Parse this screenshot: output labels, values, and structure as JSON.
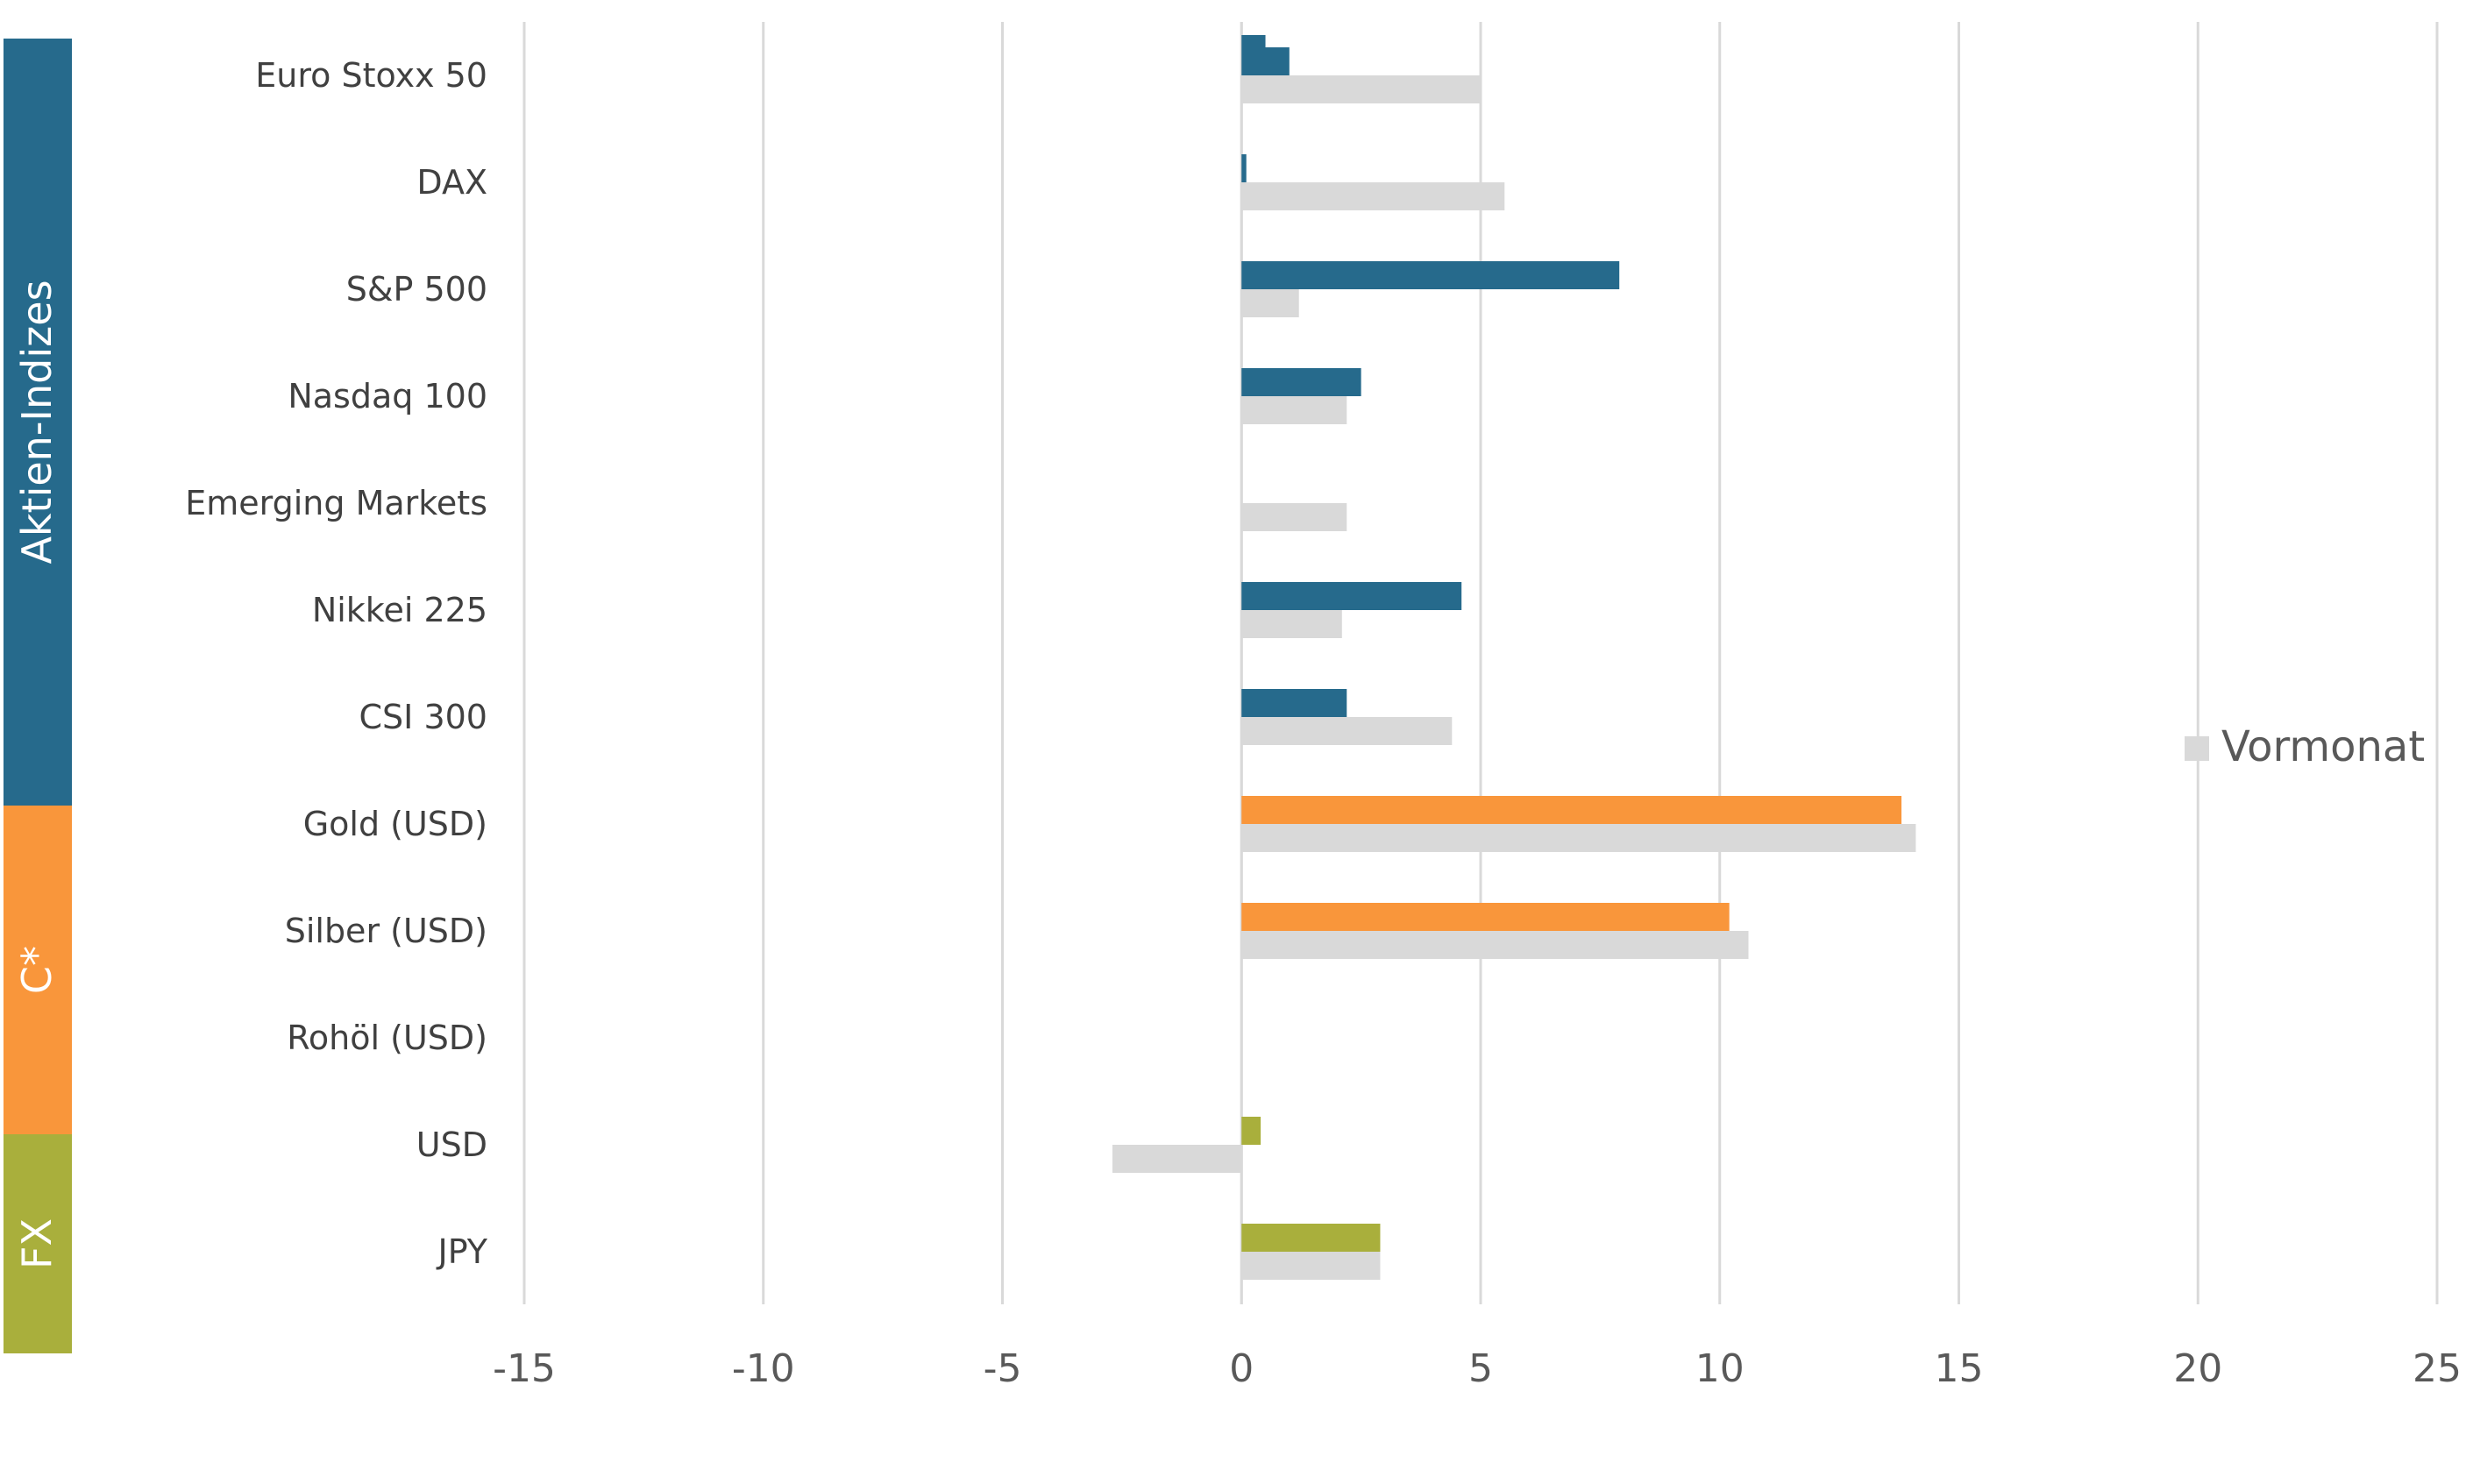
{
  "chart_data": {
    "type": "bar",
    "orientation": "horizontal",
    "categories": [
      "Euro Stoxx 50",
      "DAX",
      "S&P 500",
      "Nasdaq 100",
      "Emerging Markets",
      "Nikkei 225",
      "CSI 300",
      "Gold (USD)",
      "Silber (USD)",
      "Rohöl (USD)",
      "USD",
      "JPY"
    ],
    "groups": [
      {
        "name": "Aktien-Indizes",
        "from": 0,
        "to": 6,
        "color": "#266A8C"
      },
      {
        "name": "C*",
        "from": 7,
        "to": 9,
        "color": "#F9963B"
      },
      {
        "name": "FX",
        "from": 10,
        "to": 11,
        "color": "#A9AF3C"
      }
    ],
    "series": [
      {
        "values": [
          1.0,
          0.1,
          7.9,
          2.5,
          0,
          4.6,
          2.2,
          13.8,
          10.2,
          0,
          0.4,
          2.9
        ]
      },
      {
        "name": "Vormonat",
        "color": "#D9D9D9",
        "values": [
          5.0,
          5.5,
          1.2,
          2.2,
          2.2,
          2.1,
          4.4,
          14.1,
          10.6,
          0,
          -2.7,
          2.9
        ]
      }
    ],
    "extra_marks": [
      {
        "category": 0,
        "value": 0.5
      }
    ],
    "xlim": [
      -15,
      25
    ],
    "xticks": [
      "-15",
      "-10",
      "-5",
      "0",
      "5",
      "10",
      "15",
      "20",
      "25"
    ],
    "grid": "vertical",
    "legend": {
      "position": "right",
      "entries": [
        "Vormonat"
      ]
    }
  }
}
